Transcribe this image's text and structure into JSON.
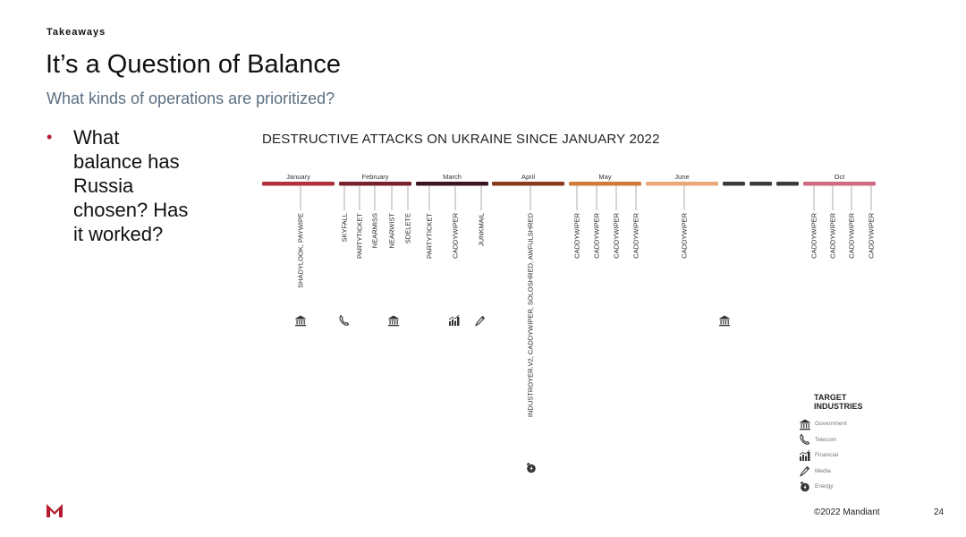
{
  "slide": {
    "kicker": "Takeaways",
    "title": "It’s a Question of Balance",
    "subtitle": "What kinds of operations are prioritized?",
    "bullets": [
      "What balance has Russia chosen? Has it worked?"
    ],
    "footer": "©2022 Mandiant",
    "page_number": "24",
    "brand_color": "#b31b2e"
  },
  "timeline": {
    "title": "DESTRUCTIVE ATTACKS ON UKRAINE SINCE JANUARY 2022",
    "months": [
      {
        "label": "January",
        "color": "#b2303c"
      },
      {
        "label": "February",
        "color": "#7a1f2c"
      },
      {
        "label": "March",
        "color": "#3d1420"
      },
      {
        "label": "April",
        "color": "#8a3a1c"
      },
      {
        "label": "May",
        "color": "#d07a3c"
      },
      {
        "label": "June",
        "color": "#e8a878"
      },
      {
        "label": "",
        "color": "#3a3a3a"
      },
      {
        "label": "",
        "color": "#3a3a3a"
      },
      {
        "label": "",
        "color": "#3a3a3a"
      },
      {
        "label": "Oct",
        "color": "#d06a80"
      }
    ],
    "attacks": [
      {
        "name": "SHADYLOOK, PAYWIPE",
        "month": "January",
        "industry": "government"
      },
      {
        "name": "SKYFALL",
        "month": "February",
        "industry": "telecom"
      },
      {
        "name": "PARTYTICKET",
        "month": "February",
        "industry": ""
      },
      {
        "name": "NEARMISS",
        "month": "February",
        "industry": ""
      },
      {
        "name": "NEARWIST",
        "month": "February",
        "industry": "government"
      },
      {
        "name": "SDELETE",
        "month": "February",
        "industry": ""
      },
      {
        "name": "PARTYTICKET",
        "month": "March",
        "industry": ""
      },
      {
        "name": "CADDYWIPER",
        "month": "March",
        "industry": "financial"
      },
      {
        "name": "JUNKMAIL",
        "month": "March",
        "industry": "media"
      },
      {
        "name": "INDUSTROYER.V2, CADDYWIPER, SOLOSHRED, AWFULSHRED",
        "month": "April",
        "industry": "energy"
      },
      {
        "name": "CADDYWIPER",
        "month": "May",
        "industry": ""
      },
      {
        "name": "CADDYWIPER",
        "month": "May",
        "industry": ""
      },
      {
        "name": "CADDYWIPER",
        "month": "May",
        "industry": ""
      },
      {
        "name": "CADDYWIPER",
        "month": "May",
        "industry": ""
      },
      {
        "name": "CADDYWIPER",
        "month": "June",
        "industry": ""
      },
      {
        "name": "CADDYWIPER",
        "month": "Oct",
        "industry": ""
      },
      {
        "name": "CADDYWIPER",
        "month": "Oct",
        "industry": ""
      },
      {
        "name": "CADDYWIPER",
        "month": "Oct",
        "industry": ""
      },
      {
        "name": "CADDYWIPER",
        "month": "Oct",
        "industry": ""
      }
    ],
    "extra_markers": [
      {
        "industry": "government",
        "month": "gap"
      }
    ]
  },
  "legend": {
    "title": "TARGET INDUSTRIES",
    "items": [
      {
        "key": "government",
        "label": "Government",
        "icon": "bank-icon"
      },
      {
        "key": "telecom",
        "label": "Telecom",
        "icon": "phone-icon"
      },
      {
        "key": "financial",
        "label": "Financial",
        "icon": "chart-icon"
      },
      {
        "key": "media",
        "label": "Media",
        "icon": "pen-icon"
      },
      {
        "key": "energy",
        "label": "Energy",
        "icon": "energy-icon"
      }
    ]
  }
}
